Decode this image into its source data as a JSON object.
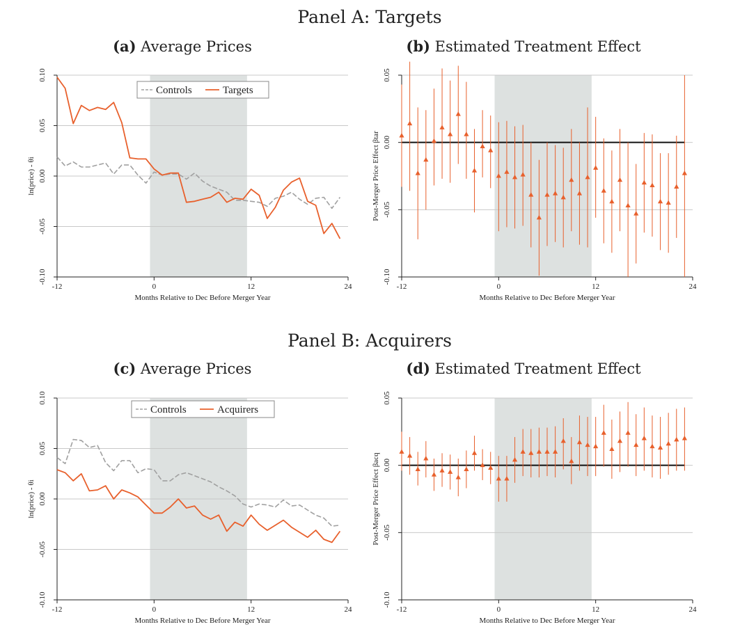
{
  "figure": {
    "panel_a_title": "Panel A: Targets",
    "panel_b_title": "Panel B: Acquirers"
  },
  "colors": {
    "series": "#e8602c",
    "controls": "#a0a0a0",
    "shade": "#dde1e0",
    "grid": "#c8c8c8",
    "zero": "#111111"
  },
  "chart_data": [
    {
      "id": "a",
      "type": "line",
      "letter": "(a)",
      "title": "Average Prices",
      "xlabel": "Months Relative to Dec Before Merger Year",
      "ylabel": "ln(price) - θi",
      "xlim": [
        -12,
        24
      ],
      "ylim": [
        -0.1,
        0.1
      ],
      "xticks": [
        -12,
        0,
        12,
        24
      ],
      "yticks": [
        -0.1,
        -0.05,
        0.0,
        0.05,
        0.1
      ],
      "ytick_labels": [
        "-0.10",
        "-0.05",
        "0.00",
        "0.05",
        "0.10"
      ],
      "shaded_region": [
        -0.5,
        11.5
      ],
      "legend_position": "top-center",
      "x": [
        -12,
        -11,
        -10,
        -9,
        -8,
        -7,
        -6,
        -5,
        -4,
        -3,
        -2,
        -1,
        0,
        1,
        2,
        3,
        4,
        5,
        6,
        7,
        8,
        9,
        10,
        11,
        12,
        13,
        14,
        15,
        16,
        17,
        18,
        19,
        20,
        21,
        22,
        23
      ],
      "series": [
        {
          "name": "Controls",
          "style": "dashed",
          "values": [
            0.019,
            0.01,
            0.014,
            0.009,
            0.009,
            0.011,
            0.013,
            0.002,
            0.011,
            0.011,
            0.001,
            -0.007,
            0.004,
            0.001,
            0.002,
            0.002,
            -0.003,
            0.003,
            -0.005,
            -0.01,
            -0.013,
            -0.016,
            -0.024,
            -0.024,
            -0.025,
            -0.026,
            -0.03,
            -0.022,
            -0.02,
            -0.016,
            -0.023,
            -0.028,
            -0.022,
            -0.021,
            -0.032,
            -0.021
          ]
        },
        {
          "name": "Targets",
          "style": "solid",
          "values": [
            0.098,
            0.087,
            0.052,
            0.07,
            0.065,
            0.068,
            0.066,
            0.073,
            0.053,
            0.018,
            0.017,
            0.017,
            0.007,
            0.001,
            0.003,
            0.003,
            -0.026,
            -0.025,
            -0.023,
            -0.021,
            -0.016,
            -0.026,
            -0.022,
            -0.023,
            -0.013,
            -0.019,
            -0.042,
            -0.031,
            -0.014,
            -0.006,
            -0.002,
            -0.025,
            -0.029,
            -0.057,
            -0.047,
            -0.062
          ]
        }
      ]
    },
    {
      "id": "b",
      "type": "scatter",
      "letter": "(b)",
      "title": "Estimated Treatment Effect",
      "xlabel": "Months Relative to Dec Before Merger Year",
      "ylabel": "Post-Merger Price Effect βtar",
      "xlim": [
        -12,
        24
      ],
      "ylim": [
        -0.1,
        0.05
      ],
      "xticks": [
        -12,
        0,
        12,
        24
      ],
      "yticks": [
        -0.1,
        -0.05,
        0.0,
        0.05
      ],
      "ytick_labels": [
        "-0.10",
        "-0.05",
        "0.00",
        "0.05"
      ],
      "shaded_region": [
        -0.5,
        11.5
      ],
      "x": [
        -12,
        -11,
        -10,
        -9,
        -8,
        -7,
        -6,
        -5,
        -4,
        -3,
        -2,
        -1,
        0,
        1,
        2,
        3,
        4,
        5,
        6,
        7,
        8,
        9,
        10,
        11,
        12,
        13,
        14,
        15,
        16,
        17,
        18,
        19,
        20,
        21,
        22,
        23
      ],
      "estimates": [
        0.005,
        0.014,
        -0.023,
        -0.013,
        0.001,
        0.011,
        0.006,
        0.021,
        0.006,
        -0.021,
        -0.003,
        -0.006,
        -0.025,
        -0.022,
        -0.026,
        -0.024,
        -0.039,
        -0.056,
        -0.039,
        -0.038,
        -0.041,
        -0.028,
        -0.038,
        -0.026,
        -0.019,
        -0.036,
        -0.044,
        -0.028,
        -0.047,
        -0.053,
        -0.03,
        -0.032,
        -0.044,
        -0.045,
        -0.033,
        -0.023
      ],
      "ci_lower": [
        -0.033,
        -0.036,
        -0.072,
        -0.05,
        -0.032,
        -0.027,
        -0.03,
        -0.016,
        -0.027,
        -0.052,
        -0.026,
        -0.034,
        -0.066,
        -0.063,
        -0.064,
        -0.062,
        -0.078,
        -0.099,
        -0.077,
        -0.074,
        -0.078,
        -0.066,
        -0.076,
        -0.078,
        -0.056,
        -0.075,
        -0.082,
        -0.066,
        -0.1,
        -0.09,
        -0.067,
        -0.07,
        -0.08,
        -0.082,
        -0.071,
        -0.1
      ],
      "ci_upper": [
        0.043,
        0.06,
        0.026,
        0.024,
        0.04,
        0.055,
        0.046,
        0.057,
        0.045,
        0.01,
        0.024,
        0.02,
        0.015,
        0.016,
        0.012,
        0.013,
        0.0,
        -0.013,
        0.0,
        -0.002,
        -0.004,
        0.01,
        0.0,
        0.026,
        0.019,
        0.003,
        -0.006,
        0.01,
        0.0,
        -0.016,
        0.007,
        0.006,
        -0.008,
        -0.008,
        0.005,
        0.05
      ]
    },
    {
      "id": "c",
      "type": "line",
      "letter": "(c)",
      "title": "Average Prices",
      "xlabel": "Months Relative to Dec Before Merger Year",
      "ylabel": "ln(price) - θi",
      "xlim": [
        -12,
        24
      ],
      "ylim": [
        -0.1,
        0.1
      ],
      "xticks": [
        -12,
        0,
        12,
        24
      ],
      "yticks": [
        -0.1,
        -0.05,
        0.0,
        0.05,
        0.1
      ],
      "ytick_labels": [
        "-0.10",
        "-0.05",
        "0.00",
        "0.05",
        "0.10"
      ],
      "shaded_region": [
        -0.5,
        11.5
      ],
      "legend_position": "top-center",
      "x": [
        -12,
        -11,
        -10,
        -9,
        -8,
        -7,
        -6,
        -5,
        -4,
        -3,
        -2,
        -1,
        0,
        1,
        2,
        3,
        4,
        5,
        6,
        7,
        8,
        9,
        10,
        11,
        12,
        13,
        14,
        15,
        16,
        17,
        18,
        19,
        20,
        21,
        22,
        23
      ],
      "series": [
        {
          "name": "Controls",
          "style": "dashed",
          "values": [
            0.041,
            0.035,
            0.059,
            0.058,
            0.051,
            0.053,
            0.036,
            0.028,
            0.038,
            0.038,
            0.026,
            0.03,
            0.029,
            0.018,
            0.018,
            0.024,
            0.026,
            0.023,
            0.02,
            0.017,
            0.012,
            0.008,
            0.003,
            -0.005,
            -0.008,
            -0.005,
            -0.006,
            -0.008,
            -0.001,
            -0.007,
            -0.006,
            -0.011,
            -0.016,
            -0.019,
            -0.027,
            -0.026
          ]
        },
        {
          "name": "Acquirers",
          "style": "solid",
          "values": [
            0.029,
            0.026,
            0.018,
            0.025,
            0.008,
            0.009,
            0.013,
            0.0,
            0.009,
            0.006,
            0.002,
            -0.006,
            -0.014,
            -0.014,
            -0.008,
            0.0,
            -0.009,
            -0.007,
            -0.016,
            -0.02,
            -0.016,
            -0.032,
            -0.023,
            -0.027,
            -0.016,
            -0.025,
            -0.031,
            -0.026,
            -0.021,
            -0.028,
            -0.033,
            -0.038,
            -0.031,
            -0.04,
            -0.043,
            -0.032
          ]
        }
      ]
    },
    {
      "id": "d",
      "type": "scatter",
      "letter": "(d)",
      "title": "Estimated Treatment Effect",
      "xlabel": "Months Relative to Dec Before Merger Year",
      "ylabel": "Post-Merger Price Effect βacq",
      "xlim": [
        -12,
        24
      ],
      "ylim": [
        -0.1,
        0.05
      ],
      "xticks": [
        -12,
        0,
        12,
        24
      ],
      "yticks": [
        -0.1,
        -0.05,
        0.0,
        0.05
      ],
      "ytick_labels": [
        "-0.10",
        "-0.05",
        "0.00",
        "0.05"
      ],
      "shaded_region": [
        -0.5,
        11.5
      ],
      "x": [
        -12,
        -11,
        -10,
        -9,
        -8,
        -7,
        -6,
        -5,
        -4,
        -3,
        -2,
        -1,
        0,
        1,
        2,
        3,
        4,
        5,
        6,
        7,
        8,
        9,
        10,
        11,
        12,
        13,
        14,
        15,
        16,
        17,
        18,
        19,
        20,
        21,
        22,
        23
      ],
      "estimates": [
        0.01,
        0.007,
        -0.003,
        0.005,
        -0.007,
        -0.004,
        -0.005,
        -0.009,
        -0.003,
        0.009,
        0.0,
        -0.002,
        -0.01,
        -0.01,
        0.004,
        0.01,
        0.009,
        0.01,
        0.01,
        0.01,
        0.018,
        0.003,
        0.017,
        0.015,
        0.014,
        0.024,
        0.012,
        0.018,
        0.024,
        0.015,
        0.02,
        0.014,
        0.013,
        0.016,
        0.019,
        0.02
      ],
      "ci_lower": [
        -0.004,
        -0.007,
        -0.015,
        -0.009,
        -0.019,
        -0.016,
        -0.018,
        -0.023,
        -0.017,
        -0.004,
        -0.011,
        -0.014,
        -0.027,
        -0.027,
        -0.013,
        -0.008,
        -0.009,
        -0.009,
        -0.008,
        -0.009,
        -0.003,
        -0.014,
        -0.004,
        -0.008,
        -0.008,
        -0.001,
        -0.01,
        -0.005,
        -0.001,
        -0.008,
        -0.004,
        -0.009,
        -0.01,
        -0.007,
        -0.004,
        -0.004
      ],
      "ci_upper": [
        0.025,
        0.021,
        0.01,
        0.018,
        0.005,
        0.009,
        0.008,
        0.005,
        0.011,
        0.022,
        0.012,
        0.01,
        0.007,
        0.007,
        0.021,
        0.027,
        0.027,
        0.028,
        0.028,
        0.029,
        0.035,
        0.021,
        0.037,
        0.036,
        0.036,
        0.045,
        0.034,
        0.04,
        0.047,
        0.038,
        0.043,
        0.037,
        0.036,
        0.039,
        0.042,
        0.043
      ]
    }
  ]
}
